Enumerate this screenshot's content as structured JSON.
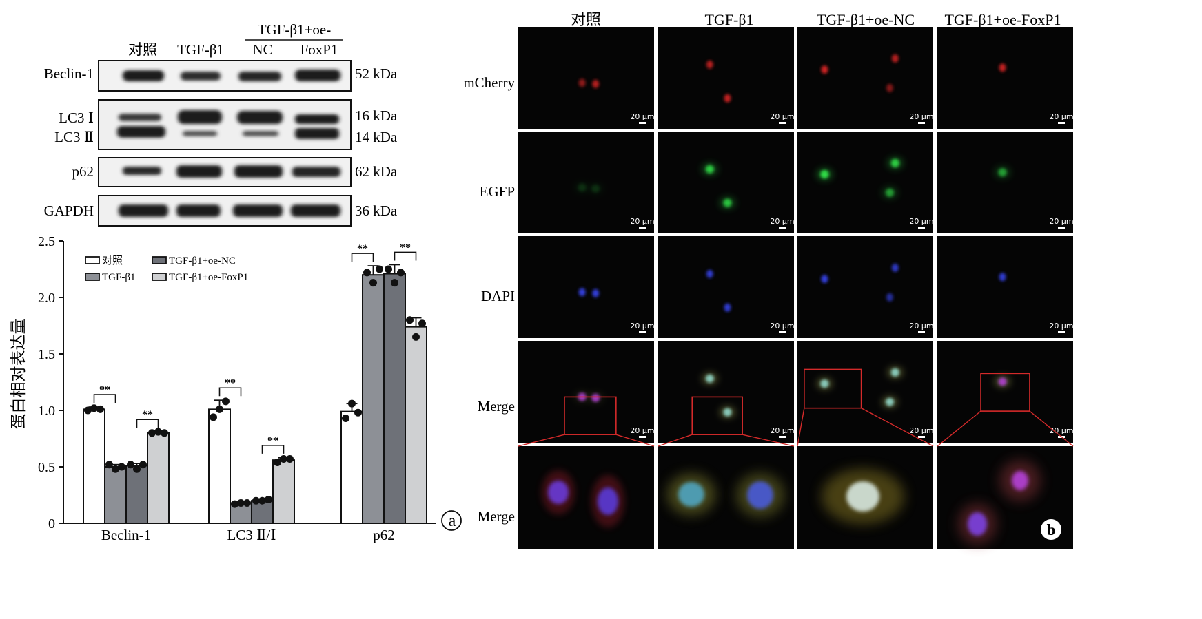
{
  "panel_a_label": "a",
  "panel_b_label": "b",
  "western_blot": {
    "group_header": "TGF-β1+oe-",
    "lanes": [
      "对照",
      "TGF-β1",
      "NC",
      "FoxP1"
    ],
    "rows": [
      {
        "label": "Beclin-1",
        "kda": [
          "52 kDa"
        ]
      },
      {
        "label": "LC3 Ⅰ",
        "label2": "LC3 Ⅱ",
        "kda": [
          "16 kDa",
          "14 kDa"
        ]
      },
      {
        "label": "p62",
        "kda": [
          "62 kDa"
        ]
      },
      {
        "label": "GAPDH",
        "kda": [
          "36 kDa"
        ]
      }
    ]
  },
  "chart_data": {
    "type": "bar",
    "categories": [
      "Beclin-1",
      "LC3 Ⅱ/Ⅰ",
      "p62"
    ],
    "ylabel": "蛋白相对表达量",
    "xlabel": "",
    "ylim": [
      0,
      2.5
    ],
    "yticks": [
      "0",
      "0.5",
      "1.0",
      "1.5",
      "2.0",
      "2.5"
    ],
    "legend_position": "top-left",
    "series": [
      {
        "name": "对照",
        "color": "#ffffff",
        "values": [
          1.01,
          1.01,
          0.99
        ],
        "points": [
          [
            1.0,
            1.02,
            1.01
          ],
          [
            0.94,
            1.01,
            1.08
          ],
          [
            0.93,
            1.06,
            0.98
          ]
        ]
      },
      {
        "name": "TGF-β1",
        "color": "#8d9096",
        "values": [
          0.5,
          0.18,
          2.2
        ],
        "points": [
          [
            0.52,
            0.48,
            0.5
          ],
          [
            0.17,
            0.18,
            0.18
          ],
          [
            2.22,
            2.13,
            2.25
          ]
        ]
      },
      {
        "name": "TGF-β1+oe-NC",
        "color": "#6e7178",
        "values": [
          0.51,
          0.2,
          2.21
        ],
        "points": [
          [
            0.52,
            0.48,
            0.52
          ],
          [
            0.2,
            0.2,
            0.21
          ],
          [
            2.25,
            2.13,
            2.22
          ]
        ]
      },
      {
        "name": "TGF-β1+oe-FoxP1",
        "color": "#cfd0d2",
        "values": [
          0.8,
          0.56,
          1.74
        ],
        "points": [
          [
            0.8,
            0.81,
            0.8
          ],
          [
            0.54,
            0.57,
            0.57
          ],
          [
            1.8,
            1.65,
            1.77
          ]
        ]
      }
    ],
    "errors": [
      [
        0.02,
        0.02,
        0.02,
        0.01
      ],
      [
        0.08,
        0.01,
        0.01,
        0.02
      ],
      [
        0.07,
        0.08,
        0.08,
        0.08
      ]
    ],
    "significance": [
      {
        "category": 0,
        "from": 0,
        "to": 1,
        "label": "**"
      },
      {
        "category": 0,
        "from": 2,
        "to": 3,
        "label": "**"
      },
      {
        "category": 1,
        "from": 0,
        "to": 1,
        "label": "**"
      },
      {
        "category": 1,
        "from": 2,
        "to": 3,
        "label": "**"
      },
      {
        "category": 2,
        "from": 0,
        "to": 1,
        "label": "**"
      },
      {
        "category": 2,
        "from": 2,
        "to": 3,
        "label": "**"
      }
    ]
  },
  "microscopy": {
    "columns": [
      "对照",
      "TGF-β1",
      "TGF-β1+oe-NC",
      "TGF-β1+oe-FoxP1"
    ],
    "rows": [
      "mCherry",
      "EGFP",
      "DAPI",
      "Merge",
      "Merge"
    ],
    "scale_bar": "20 μm"
  },
  "colors": {
    "mcherry": "#ff2a2a",
    "egfp": "#32e24a",
    "dapi": "#3a48ff",
    "inset_box": "#d42a2a"
  }
}
